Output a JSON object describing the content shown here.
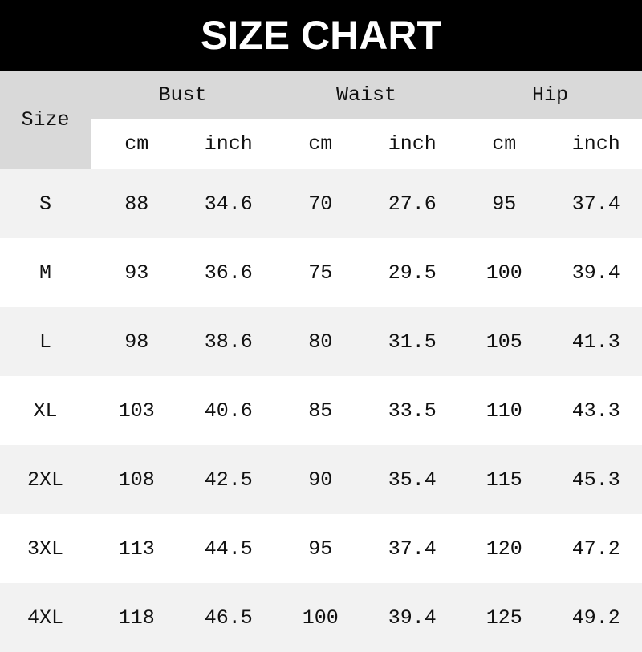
{
  "title": "SIZE CHART",
  "table": {
    "size_label": "Size",
    "groups": [
      "Bust",
      "Waist",
      "Hip"
    ],
    "units": [
      "cm",
      "inch",
      "cm",
      "inch",
      "cm",
      "inch"
    ],
    "rows": [
      [
        "S",
        "88",
        "34.6",
        "70",
        "27.6",
        "95",
        "37.4"
      ],
      [
        "M",
        "93",
        "36.6",
        "75",
        "29.5",
        "100",
        "39.4"
      ],
      [
        "L",
        "98",
        "38.6",
        "80",
        "31.5",
        "105",
        "41.3"
      ],
      [
        "XL",
        "103",
        "40.6",
        "85",
        "33.5",
        "110",
        "43.3"
      ],
      [
        "2XL",
        "108",
        "42.5",
        "90",
        "35.4",
        "115",
        "45.3"
      ],
      [
        "3XL",
        "113",
        "44.5",
        "95",
        "37.4",
        "120",
        "47.2"
      ],
      [
        "4XL",
        "118",
        "46.5",
        "100",
        "39.4",
        "125",
        "49.2"
      ]
    ]
  },
  "colors": {
    "title_bg": "#000000",
    "header_bg": "#d9d9d9",
    "row_alt": "#f2f2f2"
  }
}
